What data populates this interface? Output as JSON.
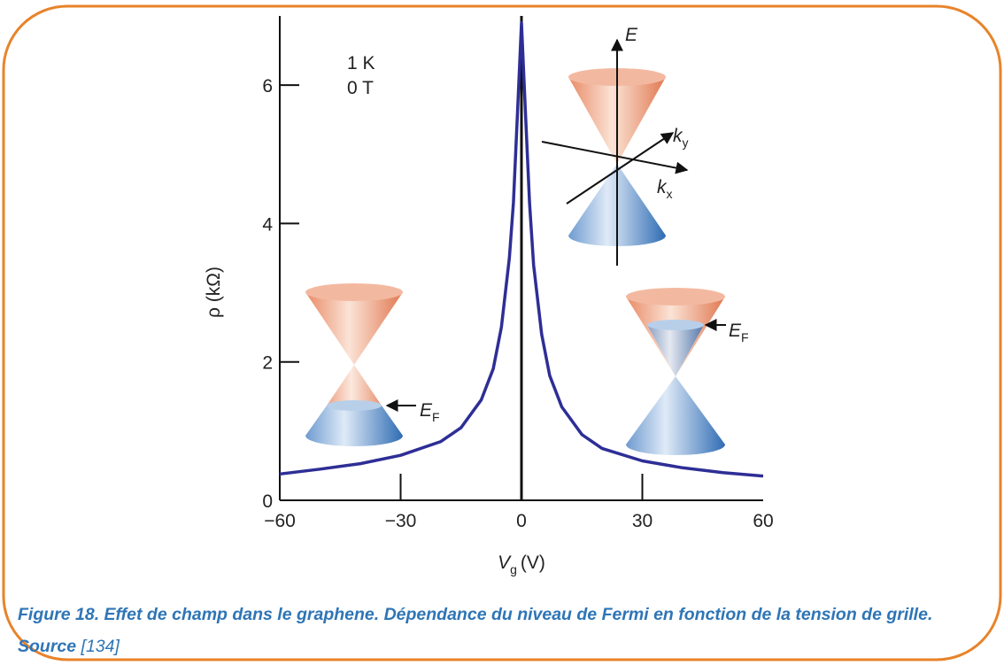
{
  "chart_data": {
    "type": "line",
    "x_label": {
      "main": "V",
      "sub": "g",
      "unit": "(V)"
    },
    "y_label": "ρ (kΩ)",
    "x": [
      -60,
      -50,
      -40,
      -30,
      -20,
      -15,
      -10,
      -7,
      -5,
      -3,
      -2,
      -1,
      0,
      1,
      2,
      3,
      5,
      7,
      10,
      15,
      20,
      30,
      40,
      50,
      60
    ],
    "values": [
      0.38,
      0.45,
      0.53,
      0.65,
      0.85,
      1.05,
      1.45,
      1.9,
      2.5,
      3.5,
      4.3,
      5.6,
      6.9,
      5.6,
      4.3,
      3.4,
      2.4,
      1.8,
      1.35,
      0.95,
      0.75,
      0.57,
      0.47,
      0.4,
      0.35
    ],
    "color": "#2e2e96",
    "xlim": [
      -60,
      60
    ],
    "ylim": [
      0,
      7
    ],
    "xticks": [
      {
        "value": -60,
        "label": "−60"
      },
      {
        "value": -30,
        "label": "−30"
      },
      0,
      30,
      60
    ],
    "yticks": [
      0,
      2,
      4,
      6
    ],
    "annotations": {
      "temperature": "1 K",
      "field": "0 T",
      "energy_axis": "E",
      "ky": {
        "main": "k",
        "sub": "y"
      },
      "kx": {
        "main": "k",
        "sub": "x"
      },
      "fermi_left": {
        "main": "E",
        "sub": "F"
      },
      "fermi_right": {
        "main": "E",
        "sub": "F"
      }
    }
  },
  "caption": {
    "text": "Figure 18. Effet de champ dans le graphene. Dépendance du niveau de Fermi en fonction de la tension de grille. Source",
    "ref": "[134]"
  }
}
